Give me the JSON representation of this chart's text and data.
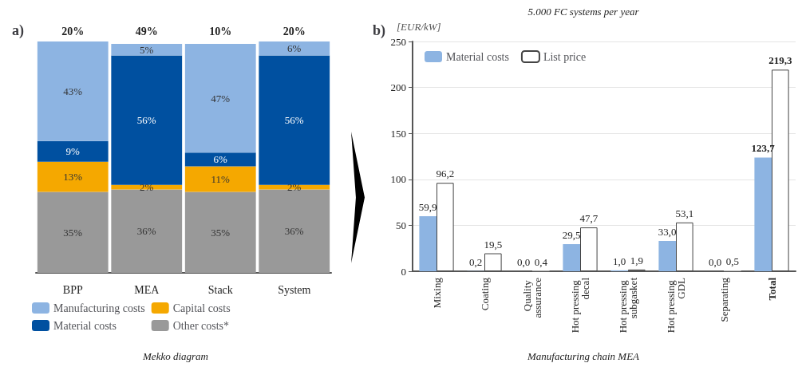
{
  "chart_data": [
    {
      "type": "bar",
      "title": "a)",
      "stacked": true,
      "categories": [
        "BPP",
        "MEA",
        "Stack",
        "System"
      ],
      "series": [
        {
          "name": "Other costs*",
          "color": "#999999",
          "values": [
            35,
            36,
            35,
            36
          ],
          "value_labels": [
            "35%",
            "36%",
            "35%",
            "36%"
          ]
        },
        {
          "name": "Capital costs",
          "color": "#f5a800",
          "values": [
            13,
            2,
            11,
            2
          ],
          "value_labels": [
            "13%",
            "2%",
            "11%",
            "2%"
          ]
        },
        {
          "name": "Material costs",
          "color": "#0050a0",
          "values": [
            9,
            56,
            6,
            56
          ],
          "value_labels": [
            "9%",
            "56%",
            "6%",
            "56%"
          ]
        },
        {
          "name": "Manufacturing costs",
          "color": "#8db4e2",
          "values": [
            43,
            5,
            47,
            6
          ],
          "value_labels": [
            "43%",
            "5%",
            "47%",
            "6%"
          ]
        }
      ],
      "legend": "bottom",
      "annotations": [
        "Mekko diagram",
        "20%",
        "49%",
        "10%",
        "20%"
      ]
    },
    {
      "type": "bar",
      "title": "b)",
      "ylabel": "[EUR/kW]",
      "categories": [
        "Mixing",
        "Coating",
        "Quality assurance",
        "Hot pressing decal",
        "Hot pressing subgasket",
        "Hot pressing GDL",
        "Separating",
        "Total"
      ],
      "series": [
        {
          "name": "Material costs",
          "color": "#8db4e2",
          "values": [
            59.9,
            0.2,
            0.0,
            29.5,
            1.0,
            33.0,
            0.0,
            123.7
          ],
          "value_labels": [
            "59,9",
            "0,2",
            "0,0",
            "29,5",
            "1,0",
            "33,0",
            "0,0",
            "123,7"
          ]
        },
        {
          "name": "List price",
          "color": "#ffffff",
          "values": [
            96.2,
            19.5,
            0.4,
            47.7,
            1.9,
            53.1,
            0.5,
            219.3
          ],
          "value_labels": [
            "96,2",
            "19,5",
            "0,4",
            "47,7",
            "1,9",
            "53,1",
            "0,5",
            "219,3"
          ]
        }
      ],
      "ylim": [
        0,
        250
      ],
      "yticks": [
        0,
        50,
        100,
        150,
        200,
        250
      ],
      "grid": "y",
      "legend": "top left",
      "annotations": [
        "Manufacturing chain MEA",
        "5.000 FC systems per year"
      ]
    }
  ]
}
